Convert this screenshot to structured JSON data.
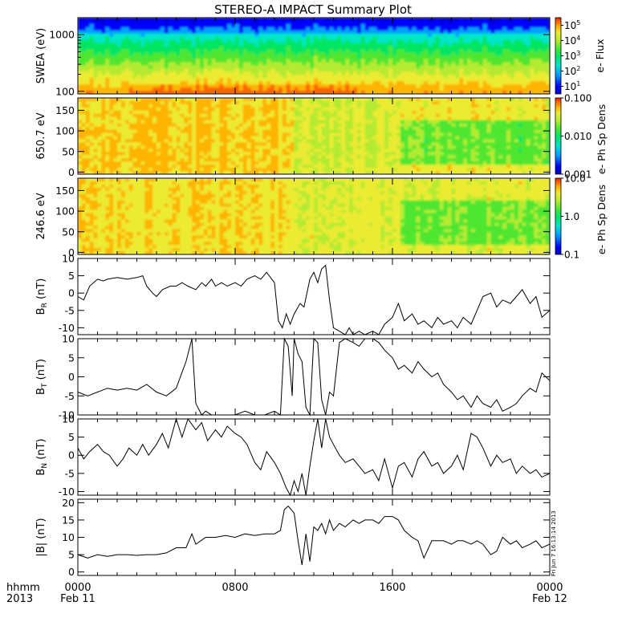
{
  "title": "STEREO-A IMPACT Summary Plot",
  "time_axis": {
    "row1_label": "hhmm",
    "row2_label": "2013",
    "ticks": [
      {
        "hour": 0,
        "label": "0000",
        "date": "Feb 11"
      },
      {
        "hour": 8,
        "label": "0800",
        "date": ""
      },
      {
        "hour": 16,
        "label": "1600",
        "date": ""
      },
      {
        "hour": 24,
        "label": "0000",
        "date": "Feb 12"
      }
    ]
  },
  "side_stamp": "Fri Jun  7 16:13:14 2013",
  "colors": {
    "frame": "#000000",
    "line": "#000000",
    "colormap": [
      "#0000cc",
      "#0000ff",
      "#00a0ff",
      "#00e6c8",
      "#00e664",
      "#50e632",
      "#b4eb32",
      "#ebeb32",
      "#ffb400",
      "#ff6400",
      "#dc1e00"
    ]
  },
  "chart_data": [
    {
      "type": "heatmap",
      "name": "swea-spectrogram",
      "ylabel": "SWEA (eV)",
      "y_scale": "log",
      "ylim": [
        90,
        2000
      ],
      "yticks": [
        {
          "value": 100,
          "label": "100"
        },
        {
          "value": 1000,
          "label": "1000"
        }
      ],
      "xlim": [
        0,
        24
      ],
      "colorbar": {
        "label": "e- Flux",
        "scale": "log",
        "ticks": [
          {
            "base": "10",
            "exp": "1"
          },
          {
            "base": "10",
            "exp": "2"
          },
          {
            "base": "10",
            "exp": "3"
          },
          {
            "base": "10",
            "exp": "4"
          },
          {
            "base": "10",
            "exp": "5"
          }
        ]
      }
    },
    {
      "type": "heatmap",
      "name": "pad-650",
      "ylabel": "650.7 eV",
      "ylim": [
        -5,
        180
      ],
      "yticks": [
        0,
        50,
        100,
        150
      ],
      "xlim": [
        0,
        24
      ],
      "colorbar": {
        "label": "e- Ph Sp Dens",
        "scale": "log",
        "ticks": [
          "0.001",
          "0.010",
          "0.100"
        ]
      }
    },
    {
      "type": "heatmap",
      "name": "pad-246",
      "ylabel": "246.6 eV",
      "ylim": [
        -5,
        180
      ],
      "yticks": [
        0,
        50,
        100,
        150
      ],
      "xlim": [
        0,
        24
      ],
      "colorbar": {
        "label": "e- Ph Sp Dens",
        "scale": "log",
        "ticks": [
          "0.1",
          "1.0",
          "10.0"
        ]
      }
    },
    {
      "type": "line",
      "name": "br",
      "ylabel_main": "B",
      "ylabel_sub": "R",
      "ylabel_unit": " (nT)",
      "ylim": [
        -12,
        10
      ],
      "yticks": [
        -10,
        -5,
        0,
        5,
        10
      ],
      "x": [
        0,
        0.3,
        0.6,
        1,
        1.3,
        1.5,
        2,
        2.5,
        3,
        3.3,
        3.5,
        3.8,
        4,
        4.3,
        4.7,
        5,
        5.3,
        5.6,
        6,
        6.3,
        6.5,
        6.8,
        7,
        7.3,
        7.6,
        8,
        8.3,
        8.6,
        9,
        9.3,
        9.6,
        10,
        10.2,
        10.4,
        10.6,
        10.8,
        11,
        11.3,
        11.5,
        11.8,
        12,
        12.2,
        12.4,
        12.6,
        12.8,
        13,
        13.3,
        13.6,
        13.8,
        14,
        14.3,
        14.6,
        15,
        15.3,
        15.6,
        16,
        16.3,
        16.6,
        17,
        17.3,
        17.6,
        18,
        18.3,
        18.6,
        19,
        19.3,
        19.6,
        20,
        20.3,
        20.6,
        21,
        21.3,
        21.6,
        22,
        22.3,
        22.6,
        23,
        23.3,
        23.6,
        24
      ],
      "y": [
        -1,
        -2,
        2,
        4,
        3.5,
        4,
        4.5,
        4,
        4.5,
        5,
        2,
        0,
        -1,
        1,
        2,
        2,
        3,
        2,
        1,
        3,
        2,
        4,
        2,
        3,
        2,
        3,
        2,
        4,
        5,
        4,
        6,
        3,
        -8,
        -10,
        -6,
        -9,
        -6,
        -3,
        -4,
        4,
        6,
        3,
        7,
        8,
        -2,
        -10,
        -11,
        -12,
        -10,
        -12,
        -11,
        -12,
        -11,
        -12,
        -9,
        -7,
        -3,
        -8,
        -6,
        -9,
        -8,
        -10,
        -7,
        -9,
        -8,
        -10,
        -7,
        -9,
        -5,
        -1,
        0,
        -4,
        -2,
        -3,
        -1,
        1,
        -3,
        -1,
        -7,
        -5
      ],
      "annotation": "B_R (nT)"
    },
    {
      "type": "line",
      "name": "bt",
      "ylabel_main": "B",
      "ylabel_sub": "T",
      "ylabel_unit": " (nT)",
      "ylim": [
        -10,
        10
      ],
      "yticks": [
        -10,
        -5,
        0,
        5,
        10
      ],
      "x": [
        0,
        0.5,
        1,
        1.5,
        2,
        2.5,
        3,
        3.5,
        4,
        4.5,
        5,
        5.5,
        5.8,
        6,
        6.3,
        6.5,
        6.8,
        7,
        7.5,
        8,
        8.5,
        9,
        9.5,
        10,
        10.3,
        10.5,
        10.7,
        10.9,
        11,
        11.2,
        11.4,
        11.6,
        11.8,
        12,
        12.2,
        12.4,
        12.6,
        12.8,
        13,
        13.3,
        13.6,
        14,
        14.3,
        14.6,
        15,
        15.3,
        15.6,
        16,
        16.3,
        16.6,
        17,
        17.3,
        17.6,
        18,
        18.3,
        18.6,
        19,
        19.3,
        19.6,
        20,
        20.3,
        20.6,
        21,
        21.3,
        21.6,
        22,
        22.3,
        22.6,
        23,
        23.3,
        23.6,
        24
      ],
      "y": [
        -4,
        -5,
        -4,
        -3,
        -3.5,
        -3,
        -3.5,
        -2,
        -4,
        -5,
        -3,
        4,
        10,
        -7,
        -10,
        -9,
        -10,
        -10,
        -10,
        -10,
        -9,
        -10,
        -10,
        -9,
        -10,
        10,
        8,
        -5,
        10,
        6,
        4,
        -8,
        -10,
        10,
        9,
        -6,
        -10,
        -4,
        -5,
        9,
        10,
        9,
        8,
        10,
        10,
        9,
        7,
        5,
        2,
        3,
        1,
        4,
        2,
        0,
        1,
        -2,
        -4,
        -6,
        -5,
        -8,
        -5,
        -7,
        -8,
        -6,
        -9,
        -8,
        -7,
        -5,
        -3,
        -4,
        1,
        -1
      ],
      "annotation": "B_T (nT)"
    },
    {
      "type": "line",
      "name": "bn",
      "ylabel_main": "B",
      "ylabel_sub": "N",
      "ylabel_unit": " (nT)",
      "ylim": [
        -11,
        10
      ],
      "yticks": [
        -10,
        -5,
        0,
        5,
        10
      ],
      "x": [
        0,
        0.3,
        0.6,
        1,
        1.3,
        1.6,
        2,
        2.3,
        2.6,
        3,
        3.3,
        3.6,
        4,
        4.3,
        4.6,
        5,
        5.3,
        5.6,
        6,
        6.3,
        6.6,
        7,
        7.3,
        7.6,
        8,
        8.3,
        8.6,
        9,
        9.3,
        9.6,
        10,
        10.3,
        10.6,
        10.8,
        11,
        11.2,
        11.4,
        11.6,
        11.8,
        12,
        12.2,
        12.4,
        12.6,
        12.8,
        13,
        13.3,
        13.6,
        14,
        14.3,
        14.6,
        15,
        15.3,
        15.6,
        16,
        16.3,
        16.6,
        17,
        17.3,
        17.6,
        18,
        18.3,
        18.6,
        19,
        19.3,
        19.6,
        20,
        20.3,
        20.6,
        21,
        21.3,
        21.6,
        22,
        22.3,
        22.6,
        23,
        23.3,
        23.6,
        24
      ],
      "y": [
        2,
        -1,
        1,
        3,
        1,
        0,
        -3,
        -1,
        2,
        0,
        3,
        0,
        3,
        6,
        2,
        10,
        5,
        10,
        7,
        9,
        4,
        7,
        5,
        8,
        6,
        5,
        3,
        -2,
        -4,
        1,
        -2,
        -5,
        -9,
        -11,
        -7,
        -10,
        -5,
        -11,
        -3,
        4,
        10,
        2,
        10,
        5,
        3,
        0,
        -2,
        -1,
        -3,
        -5,
        -4,
        -7,
        -1,
        -9,
        -3,
        -2,
        -6,
        -1,
        1,
        -3,
        -2,
        -5,
        -3,
        0,
        -4,
        6,
        5,
        2,
        -3,
        0,
        -2,
        -1,
        -5,
        -3,
        -5,
        -4,
        -6,
        -5
      ],
      "annotation": "B_N (nT)"
    },
    {
      "type": "line",
      "name": "bmag",
      "ylabel": "|B| (nT)",
      "ylim": [
        -1,
        21
      ],
      "yticks": [
        0,
        5,
        10,
        15,
        20
      ],
      "x": [
        0,
        0.5,
        1,
        1.5,
        2,
        2.5,
        3,
        3.5,
        4,
        4.5,
        5,
        5.5,
        5.8,
        6,
        6.5,
        7,
        7.5,
        8,
        8.5,
        9,
        9.5,
        10,
        10.3,
        10.5,
        10.7,
        11,
        11.2,
        11.4,
        11.6,
        11.8,
        12,
        12.2,
        12.4,
        12.6,
        12.8,
        13,
        13.3,
        13.6,
        14,
        14.3,
        14.6,
        15,
        15.3,
        15.6,
        16,
        16.3,
        16.6,
        17,
        17.3,
        17.6,
        18,
        18.3,
        18.6,
        19,
        19.3,
        19.6,
        20,
        20.3,
        20.6,
        21,
        21.3,
        21.6,
        22,
        22.3,
        22.6,
        23,
        23.3,
        23.6,
        24
      ],
      "y": [
        5,
        4,
        5,
        4.5,
        5,
        5,
        4.8,
        5,
        5,
        5.5,
        7,
        7,
        11,
        8,
        10,
        10,
        10.5,
        10,
        11,
        10.5,
        11,
        11,
        12,
        18,
        19,
        17,
        9,
        2,
        11,
        3,
        13,
        12,
        14,
        11,
        15,
        12,
        14,
        13,
        15,
        14,
        15,
        15,
        14,
        16,
        16,
        15,
        12,
        10,
        9,
        4,
        9,
        9,
        9,
        8,
        9,
        9,
        8,
        9,
        8,
        5,
        6,
        10,
        8,
        9,
        7,
        8,
        9,
        7,
        8
      ],
      "annotation": "|B| (nT)"
    }
  ]
}
